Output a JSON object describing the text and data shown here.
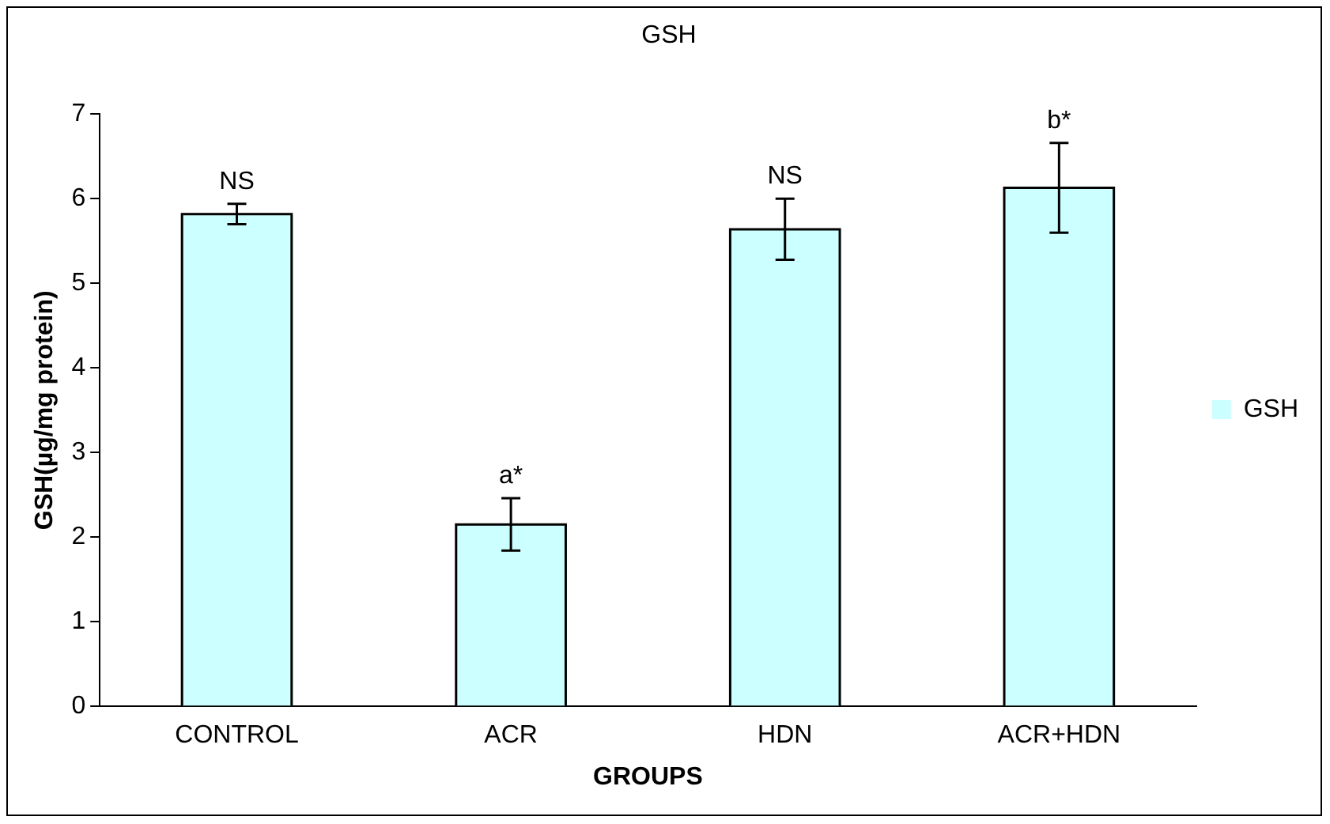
{
  "chart_data": {
    "type": "bar",
    "title": "GSH",
    "xlabel": "GROUPS",
    "ylabel": "GSH(µg/mg protein)",
    "categories": [
      "CONTROL",
      "ACR",
      "HDN",
      "ACR+HDN"
    ],
    "series": [
      {
        "name": "GSH",
        "color": "#ccffff",
        "values": [
          5.82,
          2.15,
          5.64,
          6.13
        ],
        "errors": [
          0.12,
          0.31,
          0.36,
          0.53
        ]
      }
    ],
    "ylim": [
      0,
      7
    ],
    "yticks": [
      0,
      1,
      2,
      3,
      4,
      5,
      6,
      7
    ],
    "grid": false,
    "legend": "right",
    "annotations": [
      {
        "text": "NS",
        "x": "CONTROL",
        "y": 5.94
      },
      {
        "text": "a*",
        "x": "ACR",
        "y": 2.46
      },
      {
        "text": "NS",
        "x": "HDN",
        "y": 6.0
      },
      {
        "text": "b*",
        "x": "ACR+HDN",
        "y": 6.66
      }
    ]
  }
}
